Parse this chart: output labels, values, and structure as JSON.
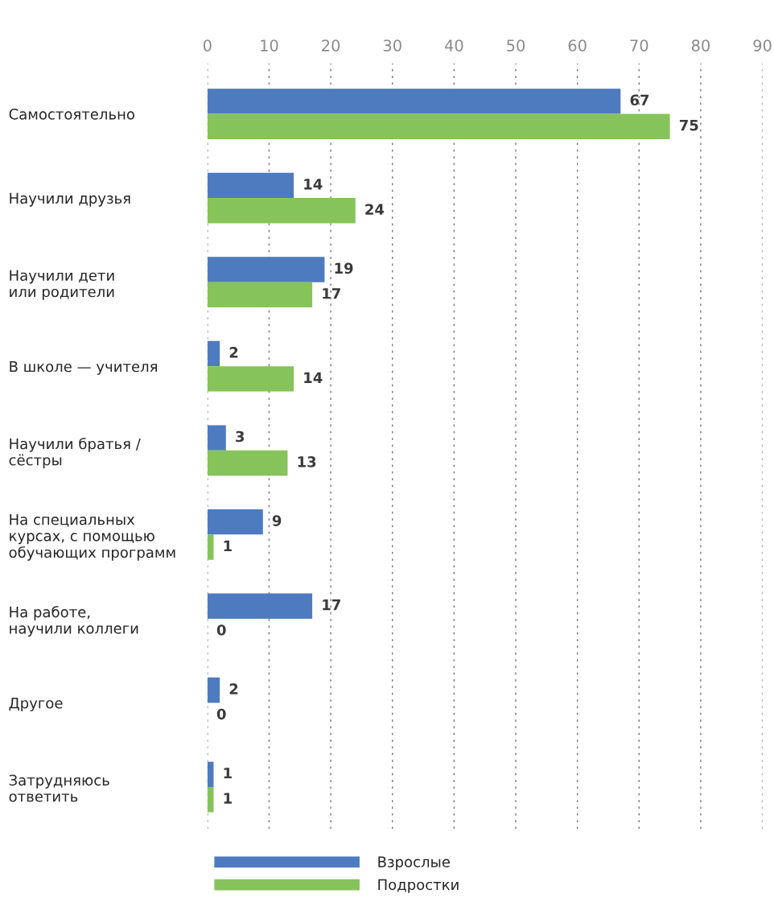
{
  "chart_data": {
    "type": "bar",
    "orientation": "horizontal",
    "categories": [
      "Самостоятельно",
      "Научили друзья",
      "Научили дети\nили родители",
      "В школе — учителя",
      "Научили братья /\nсёстры",
      "На специальных\nкурсах, с помощью\nобучающих программ",
      "На работе,\nнаучили коллеги",
      "Другое",
      "Затрудняюсь\nответить"
    ],
    "series": [
      {
        "name": "Взрослые",
        "color": "#4e7bbf",
        "values": [
          67,
          14,
          19,
          2,
          3,
          9,
          17,
          2,
          1
        ]
      },
      {
        "name": "Подростки",
        "color": "#86c35a",
        "values": [
          75,
          24,
          17,
          14,
          13,
          1,
          0,
          0,
          1
        ]
      }
    ],
    "xlim": [
      0,
      90
    ],
    "xticks": [
      0,
      10,
      20,
      30,
      40,
      50,
      60,
      70,
      80,
      90
    ],
    "grid": "x",
    "legend": "bottom",
    "data_labels": true
  }
}
